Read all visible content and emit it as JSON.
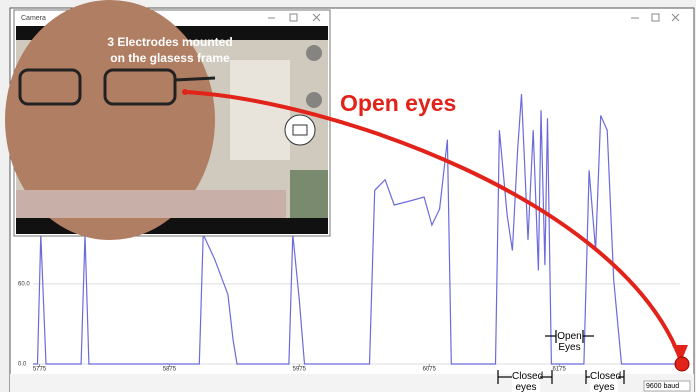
{
  "camera_window": {
    "title": "Camera",
    "caption": [
      "3 Electrodes mounted",
      "on the glasess frame"
    ]
  },
  "chart_data": {
    "type": "line",
    "x": [
      5770,
      5773.5,
      5776,
      5780,
      5807,
      5810,
      5813,
      5898,
      5901,
      5910,
      5920,
      5924,
      5927,
      5967,
      5970,
      5975,
      5979,
      6029,
      6033,
      6041,
      6048,
      6060,
      6071,
      6077,
      6083,
      6089,
      6092,
      6126,
      6129,
      6135,
      6139,
      6143,
      6146,
      6151,
      6155,
      6159,
      6161,
      6164,
      6166,
      6169,
      6194,
      6198,
      6203,
      6207,
      6212,
      6217,
      6223,
      6267
    ],
    "values": [
      0,
      0,
      97,
      0,
      0,
      97,
      0,
      0,
      97,
      78,
      52,
      18,
      0,
      0,
      97,
      48,
      0,
      0,
      130,
      138,
      119,
      122,
      125,
      104,
      116,
      168,
      0,
      0,
      175,
      111,
      85,
      160,
      202,
      93,
      175,
      70,
      190,
      74,
      184,
      0,
      0,
      145,
      85,
      186,
      175,
      63,
      0,
      0
    ],
    "color": "#6b6bdc",
    "xlim": [
      5770,
      6268
    ],
    "xticks": [
      5775,
      5875,
      5975,
      6075,
      6175
    ],
    "ylim": [
      0,
      265
    ],
    "yticks": [
      {
        "value": 0,
        "label": "0.0"
      },
      {
        "value": 60,
        "label": "60.0"
      }
    ],
    "annotations": [
      "Open eyes",
      "Open Eyes",
      "Closed eyes",
      "Closed eyes"
    ]
  },
  "status_bar": {
    "baud": "9600 baud"
  }
}
